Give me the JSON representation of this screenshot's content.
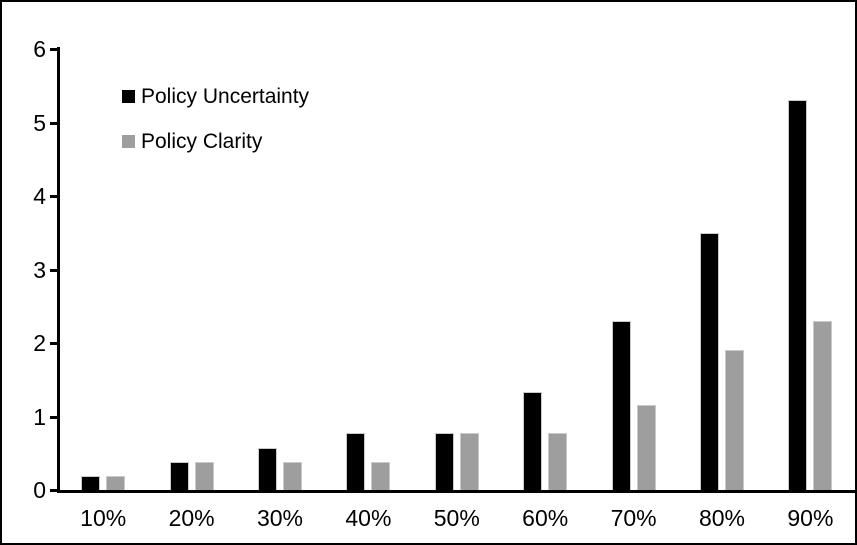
{
  "chart_data": {
    "type": "bar",
    "title": "",
    "xlabel": "",
    "ylabel": "",
    "categories": [
      "10%",
      "20%",
      "30%",
      "40%",
      "50%",
      "60%",
      "70%",
      "80%",
      "90%"
    ],
    "series": [
      {
        "name": "Policy Uncertainty",
        "color": "#000000",
        "values": [
          0.19,
          0.38,
          0.57,
          0.77,
          0.78,
          1.33,
          2.3,
          3.5,
          5.3
        ]
      },
      {
        "name": "Policy Clarity",
        "color": "#9e9e9e",
        "values": [
          0.19,
          0.38,
          0.38,
          0.38,
          0.77,
          0.77,
          1.15,
          1.9,
          2.3
        ]
      }
    ],
    "ylim": [
      0,
      6
    ],
    "ytick_step": 1,
    "ytick_labels": [
      "0",
      "1",
      "2",
      "3",
      "4",
      "5",
      "6"
    ],
    "grid": false,
    "legend_position": "top-left",
    "background_color": "#ffffff",
    "axis_color": "#000000",
    "frame_border_color": "#000000"
  }
}
